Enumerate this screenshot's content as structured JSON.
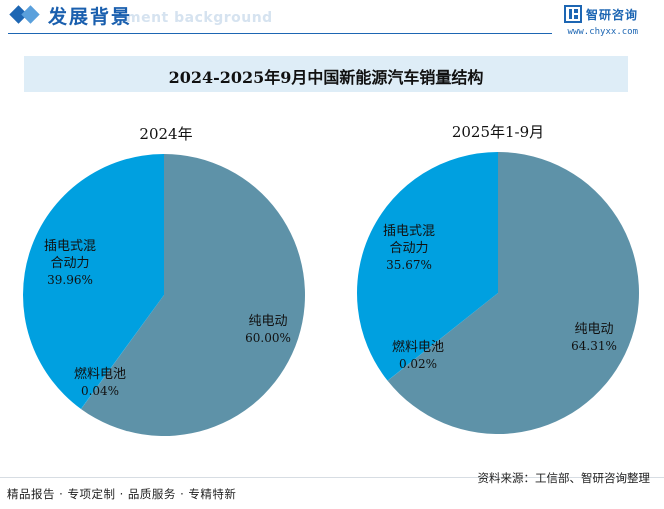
{
  "header": {
    "title": "发展背景",
    "subtitle": "ment background",
    "brand_name": "智研咨询",
    "brand_url": "www.chyxx.com"
  },
  "footer": {
    "tags": "精品报告 · 专项定制 · 品质服务 · 专精特新",
    "source": "资料来源：工信部、智研咨询整理"
  },
  "colors": {
    "accent": "#1d66b3",
    "slice_bev": "#5e92a8",
    "slice_phev": "#00a0e0",
    "slice_fcev": "#00a0e0"
  },
  "chart_data": {
    "title": "2024-2025年9月中国新能源汽车销量结构",
    "charts": [
      {
        "type": "pie",
        "title": "2024年",
        "slices": [
          {
            "name": "纯电动",
            "value": 60.0,
            "label": "60.00%"
          },
          {
            "name": "燃料电池",
            "value": 0.04,
            "label": "0.04%"
          },
          {
            "name": "插电式混合动力",
            "name_lines": [
              "插电式混",
              "合动力"
            ],
            "value": 39.96,
            "label": "39.96%"
          }
        ]
      },
      {
        "type": "pie",
        "title": "2025年1-9月",
        "slices": [
          {
            "name": "纯电动",
            "value": 64.31,
            "label": "64.31%"
          },
          {
            "name": "燃料电池",
            "value": 0.02,
            "label": "0.02%"
          },
          {
            "name": "插电式混合动力",
            "name_lines": [
              "插电式混",
              "合动力"
            ],
            "value": 35.67,
            "label": "35.67%"
          }
        ]
      }
    ]
  }
}
